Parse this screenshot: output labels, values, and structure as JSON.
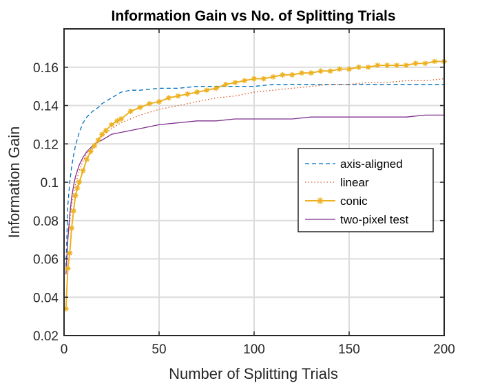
{
  "chart_data": {
    "type": "line",
    "title": "Information Gain vs No. of Splitting Trials",
    "xlabel": "Number of Splitting Trials",
    "ylabel": "Information Gain",
    "xlim": [
      0,
      200
    ],
    "ylim": [
      0.02,
      0.18
    ],
    "xticks": [
      0,
      50,
      100,
      150,
      200
    ],
    "yticks": [
      0.02,
      0.04,
      0.06,
      0.08,
      0.1,
      0.12,
      0.14,
      0.16
    ],
    "xtick_labels": [
      "0",
      "50",
      "100",
      "150",
      "200"
    ],
    "ytick_labels": [
      "0.02",
      "0.04",
      "0.06",
      "0.08",
      "0.1",
      "0.12",
      "0.14",
      "0.16"
    ],
    "grid": true,
    "legend_position": "center-right",
    "series": [
      {
        "name": "axis-aligned",
        "color": "#0072BD",
        "style": "dashed",
        "x": [
          1,
          2,
          3,
          4,
          5,
          6,
          8,
          10,
          12,
          15,
          18,
          20,
          25,
          30,
          35,
          40,
          50,
          60,
          70,
          80,
          90,
          100,
          110,
          120,
          130,
          140,
          150,
          160,
          170,
          180,
          190,
          200
        ],
        "y": [
          0.056,
          0.088,
          0.1,
          0.108,
          0.114,
          0.119,
          0.126,
          0.131,
          0.134,
          0.137,
          0.139,
          0.141,
          0.144,
          0.147,
          0.148,
          0.148,
          0.149,
          0.149,
          0.15,
          0.15,
          0.15,
          0.15,
          0.151,
          0.151,
          0.151,
          0.151,
          0.151,
          0.151,
          0.151,
          0.151,
          0.151,
          0.151
        ]
      },
      {
        "name": "linear",
        "color": "#D95319",
        "style": "dotted",
        "x": [
          1,
          2,
          3,
          4,
          5,
          6,
          8,
          10,
          12,
          15,
          18,
          20,
          25,
          30,
          35,
          40,
          50,
          60,
          70,
          80,
          90,
          100,
          110,
          120,
          130,
          140,
          150,
          160,
          170,
          180,
          190,
          200
        ],
        "y": [
          0.052,
          0.07,
          0.08,
          0.088,
          0.094,
          0.099,
          0.106,
          0.111,
          0.115,
          0.119,
          0.122,
          0.124,
          0.128,
          0.131,
          0.133,
          0.135,
          0.138,
          0.14,
          0.142,
          0.144,
          0.145,
          0.147,
          0.148,
          0.149,
          0.15,
          0.151,
          0.151,
          0.152,
          0.152,
          0.153,
          0.153,
          0.154
        ]
      },
      {
        "name": "conic",
        "color": "#EDB120",
        "style": "solid-star",
        "x": [
          1,
          2,
          3,
          4,
          5,
          6,
          7,
          8,
          10,
          12,
          14,
          16,
          18,
          20,
          22,
          25,
          28,
          30,
          35,
          40,
          45,
          50,
          55,
          60,
          65,
          70,
          75,
          80,
          85,
          90,
          95,
          100,
          105,
          110,
          115,
          120,
          125,
          130,
          135,
          140,
          145,
          150,
          155,
          160,
          165,
          170,
          175,
          180,
          185,
          190,
          195,
          200
        ],
        "y": [
          0.034,
          0.055,
          0.063,
          0.076,
          0.085,
          0.093,
          0.097,
          0.1,
          0.106,
          0.112,
          0.116,
          0.119,
          0.122,
          0.125,
          0.127,
          0.13,
          0.132,
          0.133,
          0.137,
          0.139,
          0.141,
          0.142,
          0.144,
          0.145,
          0.146,
          0.147,
          0.148,
          0.149,
          0.151,
          0.152,
          0.153,
          0.154,
          0.154,
          0.155,
          0.156,
          0.156,
          0.157,
          0.157,
          0.158,
          0.158,
          0.159,
          0.159,
          0.16,
          0.16,
          0.161,
          0.161,
          0.161,
          0.161,
          0.162,
          0.162,
          0.163,
          0.163
        ]
      },
      {
        "name": "two-pixel test",
        "color": "#7E2F8E",
        "style": "solid",
        "x": [
          1,
          2,
          3,
          4,
          5,
          6,
          8,
          10,
          12,
          15,
          18,
          20,
          25,
          30,
          35,
          40,
          50,
          60,
          70,
          80,
          90,
          100,
          110,
          120,
          130,
          140,
          150,
          160,
          170,
          180,
          190,
          200
        ],
        "y": [
          0.052,
          0.07,
          0.083,
          0.092,
          0.098,
          0.103,
          0.109,
          0.113,
          0.116,
          0.119,
          0.121,
          0.122,
          0.125,
          0.126,
          0.127,
          0.128,
          0.13,
          0.131,
          0.132,
          0.132,
          0.133,
          0.133,
          0.133,
          0.133,
          0.134,
          0.134,
          0.134,
          0.134,
          0.134,
          0.134,
          0.135,
          0.135
        ]
      }
    ]
  }
}
